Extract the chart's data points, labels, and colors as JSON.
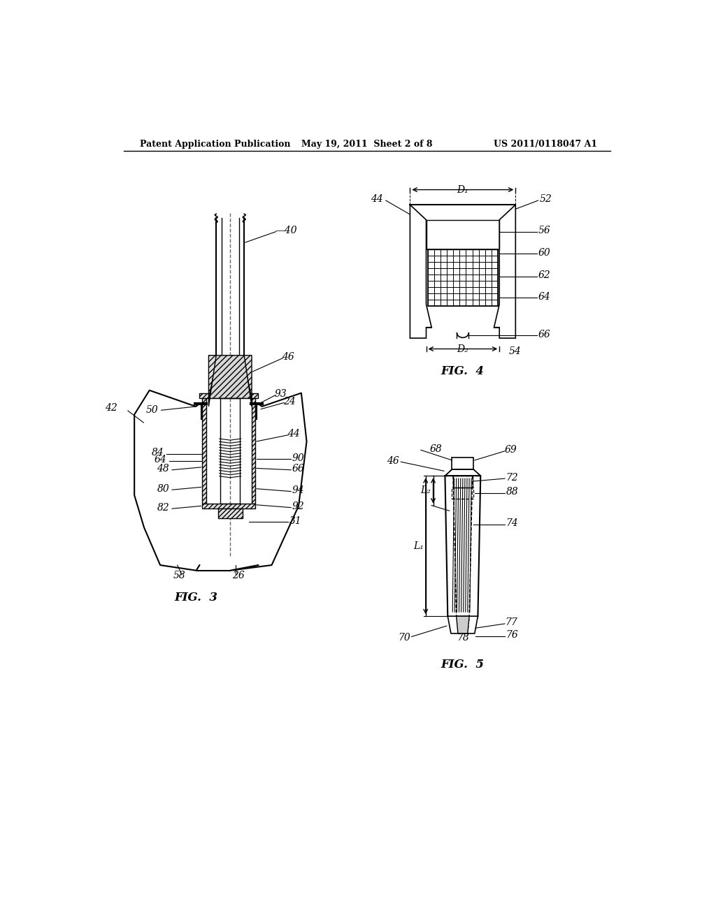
{
  "bg_color": "#ffffff",
  "line_color": "#000000",
  "header_left": "Patent Application Publication",
  "header_mid": "May 19, 2011  Sheet 2 of 8",
  "header_right": "US 2011/0118047 A1",
  "fig3_label": "FIG.  3",
  "fig4_label": "FIG.  4",
  "fig5_label": "FIG.  5"
}
